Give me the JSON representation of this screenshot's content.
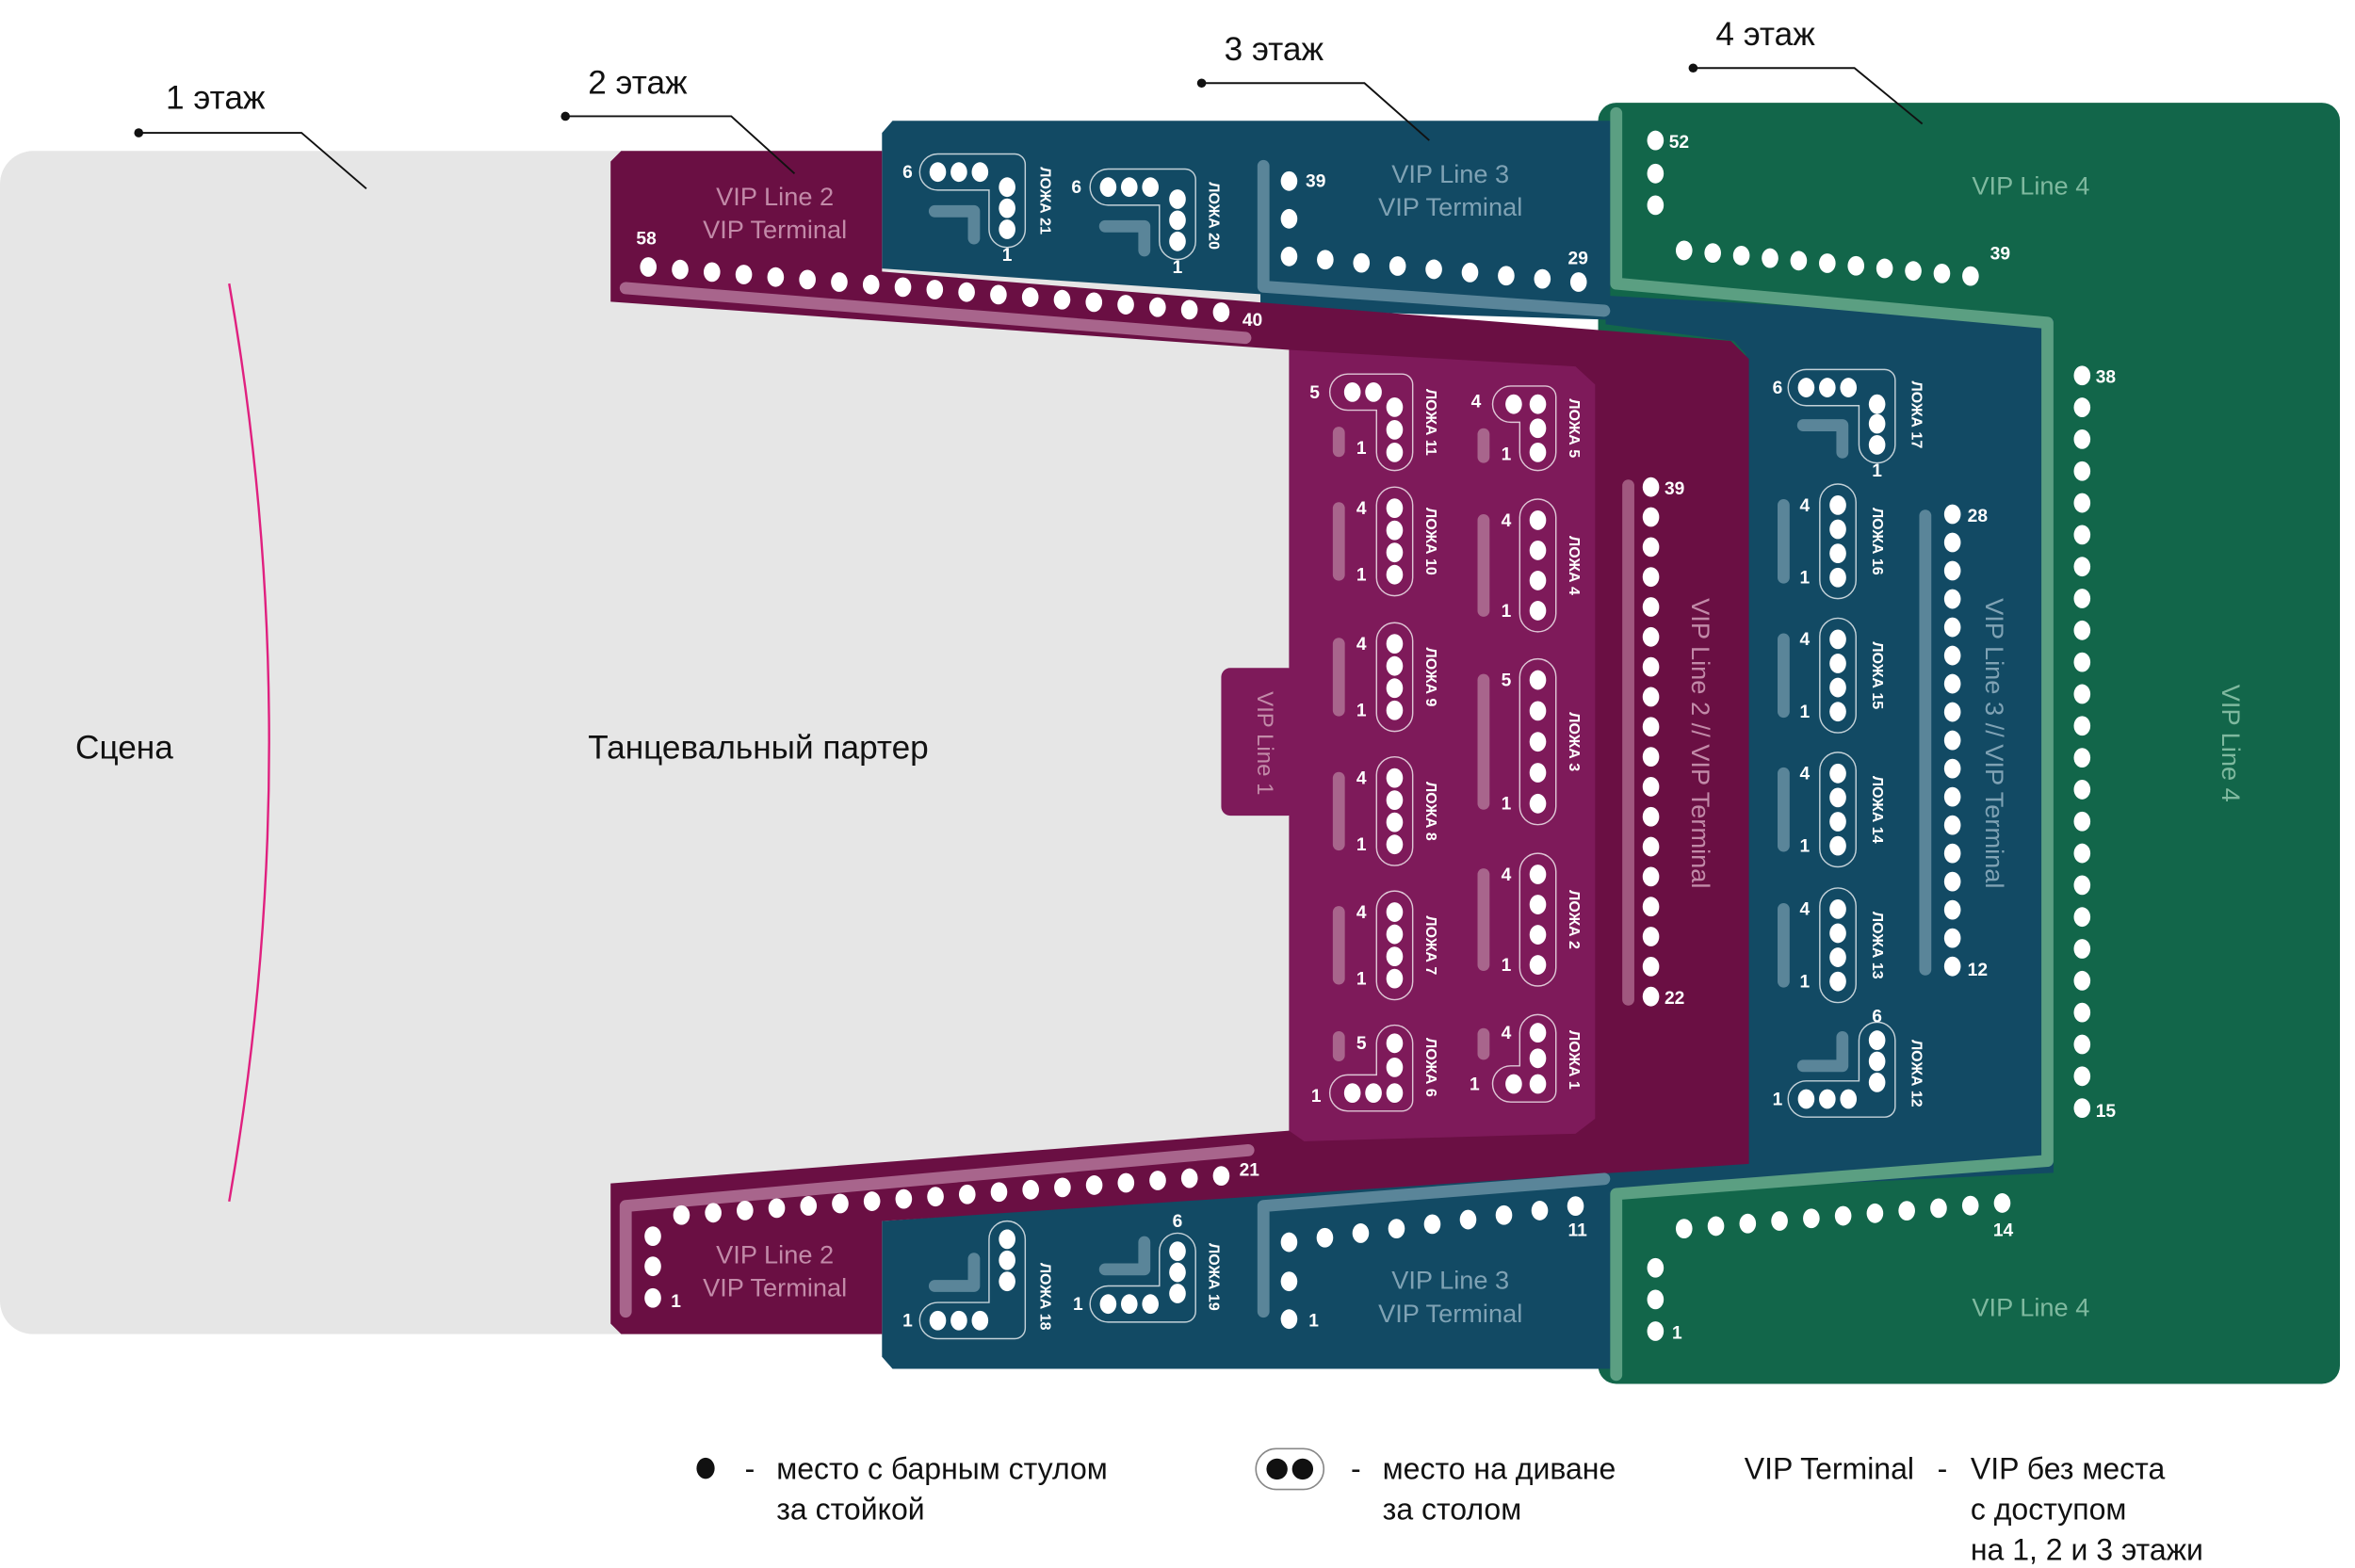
{
  "floors": [
    "1 этаж",
    "2 этаж",
    "3 этаж",
    "4 этаж"
  ],
  "stage": "Сцена",
  "dance_floor": "Танцевальный партер",
  "colors": {
    "floor1": "#e6e6e6",
    "floor2": "#6a0f43",
    "floor2_inner": "#7e1a5a",
    "floor3": "#124a64",
    "floor4": "#12664a",
    "stage_arc": "#e0207f",
    "seat": "#ffffff"
  },
  "zones": {
    "vip_line_1": "VIP Line 1",
    "vip_line_2": "VIP Line 2",
    "vip_line_3": "VIP Line 3",
    "vip_line_4": "VIP Line 4",
    "vip_terminal": "VIP Terminal",
    "vip_line_2_terminal": "VIP Line 2 // VIP Terminal",
    "vip_line_3_terminal": "VIP Line 3 // VIP Terminal"
  },
  "seat_labels": {
    "l2_top_first": "58",
    "l2_top_last": "40",
    "l2_bottom_first": "1",
    "l2_bottom_last": "21",
    "l2_col_first": "39",
    "l2_col_last": "22",
    "l3_top_first": "39",
    "l3_top_last": "29",
    "l3_bottom_first": "1",
    "l3_bottom_last": "11",
    "l3_col_first": "28",
    "l3_col_last": "12",
    "l4_top_first": "52",
    "l4_top_last": "39",
    "l4_col_first": "38",
    "l4_col_last": "15",
    "l4_bottom_first": "1",
    "l4_bottom_last": "14"
  },
  "boxes": [
    {
      "label": "ЛОЖА 1",
      "first": "1",
      "last": "4"
    },
    {
      "label": "ЛОЖА 2",
      "first": "1",
      "last": "4"
    },
    {
      "label": "ЛОЖА 3",
      "first": "1",
      "last": "5"
    },
    {
      "label": "ЛОЖА 4",
      "first": "1",
      "last": "4"
    },
    {
      "label": "ЛОЖА 5",
      "first": "1",
      "last": "4"
    },
    {
      "label": "ЛОЖА 6",
      "first": "1",
      "last": "5"
    },
    {
      "label": "ЛОЖА 7",
      "first": "1",
      "last": "4"
    },
    {
      "label": "ЛОЖА 8",
      "first": "1",
      "last": "4"
    },
    {
      "label": "ЛОЖА 9",
      "first": "1",
      "last": "4"
    },
    {
      "label": "ЛОЖА 10",
      "first": "1",
      "last": "4"
    },
    {
      "label": "ЛОЖА 11",
      "first": "1",
      "last": "5"
    },
    {
      "label": "ЛОЖА 12",
      "first": "1",
      "last": "6"
    },
    {
      "label": "ЛОЖА 13",
      "first": "1",
      "last": "4"
    },
    {
      "label": "ЛОЖА 14",
      "first": "1",
      "last": "4"
    },
    {
      "label": "ЛОЖА 15",
      "first": "1",
      "last": "4"
    },
    {
      "label": "ЛОЖА 16",
      "first": "1",
      "last": "4"
    },
    {
      "label": "ЛОЖА 17",
      "first": "1",
      "last": "6"
    },
    {
      "label": "ЛОЖА 18",
      "first": "1",
      "last": "6"
    },
    {
      "label": "ЛОЖА 19",
      "first": "1",
      "last": "6"
    },
    {
      "label": "ЛОЖА 20",
      "first": "1",
      "last": "6"
    },
    {
      "label": "ЛОЖА 21",
      "first": "1",
      "last": "6"
    }
  ],
  "legend": {
    "bar_seat": {
      "icon": "dot-icon",
      "dash": "-",
      "line1": "место с барным стулом",
      "line2": "за стойкой"
    },
    "sofa_seat": {
      "icon": "sofa-seat-icon",
      "dash": "-",
      "line1": "место на диване",
      "line2": "за столом"
    },
    "vip_terminal": {
      "term": "VIP Terminal",
      "dash": "-",
      "line1": "VIP без места",
      "line2": "с доступом",
      "line3": "на 1, 2 и 3 этажи"
    }
  }
}
